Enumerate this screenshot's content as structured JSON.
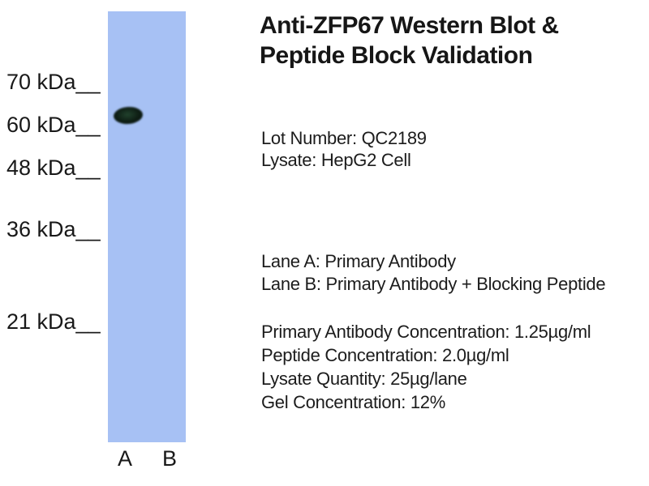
{
  "title": {
    "line1": "Anti-ZFP67 Western Blot &",
    "line2": "Peptide Block Validation"
  },
  "info": {
    "lot_number": "Lot Number: QC2189",
    "lysate": "Lysate: HepG2 Cell",
    "lane_a_desc": "Lane A: Primary Antibody",
    "lane_b_desc": "Lane B: Primary Antibody + Blocking Peptide",
    "primary_antibody_concentration": "Primary Antibody Concentration: 1.25µg/ml",
    "peptide_concentration": "Peptide Concentration: 2.0µg/ml",
    "lysate_quantity": "Lysate Quantity: 25µg/lane",
    "gel_concentration": "Gel Concentration: 12%"
  },
  "blot": {
    "markers": [
      {
        "label": "70 kDa__"
      },
      {
        "label": "60 kDa__"
      },
      {
        "label": "48 kDa__"
      },
      {
        "label": "36 kDa__"
      },
      {
        "label": "21 kDa__"
      }
    ],
    "lane_labels": [
      "A",
      "B"
    ],
    "observed_band": {
      "lane": "A",
      "approx_kda": "60"
    }
  },
  "colors": {
    "lane_fill": "#a7c1f4",
    "band": "#0d1c13",
    "text": "#1c1c1c",
    "background": "#ffffff"
  }
}
